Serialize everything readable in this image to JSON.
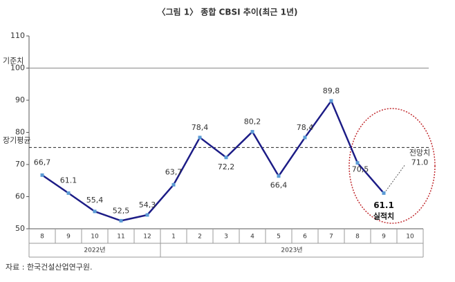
{
  "chart_data": {
    "type": "line",
    "title": "〈그림 1〉 종합 CBSI 추이(최근 1년)",
    "categories": [
      "8",
      "9",
      "10",
      "11",
      "12",
      "1",
      "2",
      "3",
      "4",
      "5",
      "6",
      "7",
      "8",
      "9",
      "10"
    ],
    "years": [
      "2022년",
      "2023년"
    ],
    "values": [
      66.7,
      61.1,
      55.4,
      52.5,
      54.3,
      63.7,
      78.4,
      72.2,
      80.2,
      66.4,
      78.4,
      89.8,
      70.5,
      61.1,
      null
    ],
    "value_labels": [
      "66,7",
      "61.1",
      "55,4",
      "52,5",
      "54,3",
      "63,7",
      "78,4",
      "72,2",
      "80,2",
      "66,4",
      "78,4",
      "89,8",
      "70,5",
      "61.1",
      null
    ],
    "color": "#1c1c86",
    "ylim": [
      50,
      110
    ],
    "yticks": [
      50,
      60,
      70,
      80,
      90,
      100,
      110
    ],
    "reference_lines": [
      {
        "label": "기준치",
        "value": 100,
        "style": "solid"
      },
      {
        "label": "장기평균",
        "value": 75.3,
        "style": "dashed"
      }
    ],
    "actual_label": "실적치",
    "forecast": {
      "label": "전망치",
      "value": 71.0,
      "value_label": "71.0"
    },
    "source": "자료 : 한국건설산업연구원."
  }
}
